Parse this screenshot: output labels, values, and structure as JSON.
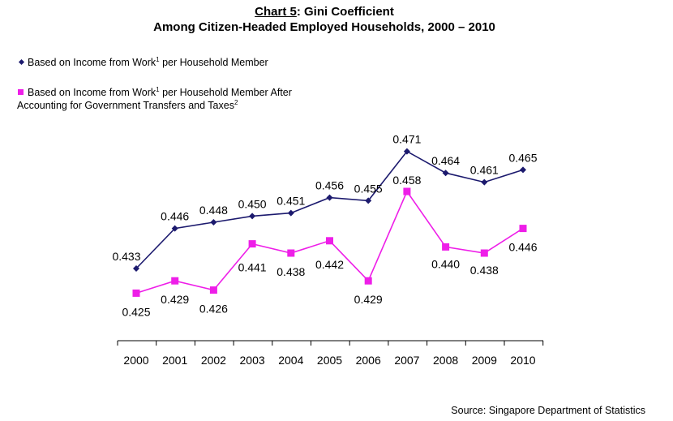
{
  "title": {
    "chart_label": "Chart 5",
    "title_rest": ": Gini Coefficient",
    "subtitle": "Among Citizen-Headed Employed Households, 2000 – 2010"
  },
  "legend": {
    "series1_text": "Based on Income from Work",
    "series1_sup": "1",
    "series1_text_after": " per Household Member",
    "series2_text": "Based on Income from Work",
    "series2_sup": "1",
    "series2_text_after": " per Household Member After",
    "series2_line2": "Accounting for Government Transfers and Taxes",
    "series2_line2_sup": "2"
  },
  "source": "Source: Singapore Department of Statistics",
  "colors": {
    "series1": "#1c1a6e",
    "series2": "#ee1ee8",
    "axis": "#000000"
  },
  "chart_data": {
    "type": "line",
    "title": "Chart 5: Gini Coefficient",
    "subtitle": "Among Citizen-Headed Employed Households, 2000 – 2010",
    "categories": [
      "2000",
      "2001",
      "2002",
      "2003",
      "2004",
      "2005",
      "2006",
      "2007",
      "2008",
      "2009",
      "2010"
    ],
    "series": [
      {
        "name": "Based on Income from Work per Household Member",
        "values": [
          0.433,
          0.446,
          0.448,
          0.45,
          0.451,
          0.456,
          0.455,
          0.471,
          0.464,
          0.461,
          0.465
        ],
        "labels": [
          "0.433",
          "0.446",
          "0.448",
          "0.450",
          "0.451",
          "0.456",
          "0.455",
          "0.471",
          "0.464",
          "0.461",
          "0.465"
        ],
        "marker": "diamond"
      },
      {
        "name": "Based on Income from Work per Household Member After Accounting for Government Transfers and Taxes",
        "values": [
          0.425,
          0.429,
          0.426,
          0.441,
          0.438,
          0.442,
          0.429,
          0.458,
          0.44,
          0.438,
          0.446
        ],
        "labels": [
          "0.425",
          "0.429",
          "0.426",
          "0.441",
          "0.438",
          "0.442",
          "0.429",
          "0.458",
          "0.440",
          "0.438",
          "0.446"
        ],
        "marker": "square"
      }
    ],
    "xlabel": "",
    "ylabel": "",
    "y_axis_visible": false,
    "grid": false,
    "legend_position": "top-left"
  }
}
